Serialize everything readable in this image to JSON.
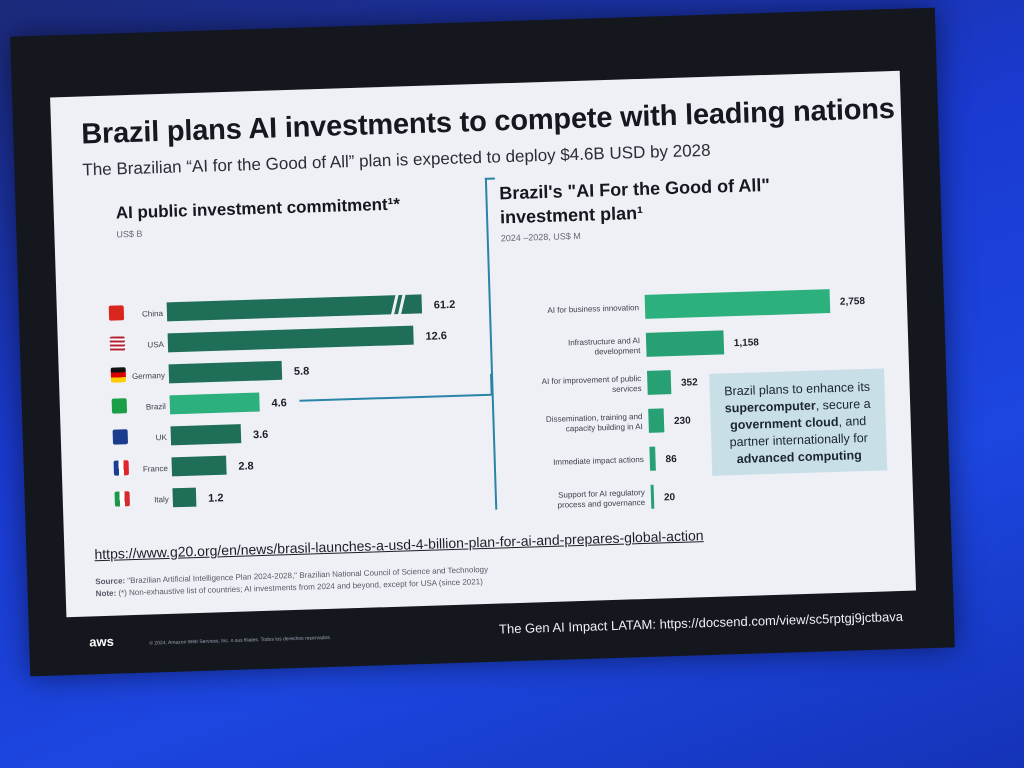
{
  "slide": {
    "title": "Brazil plans AI investments to compete with leading nations",
    "subtitle": "The Brazilian “AI for the Good of All” plan is expected to deploy $4.6B USD by 2028",
    "callout": {
      "line1": "Brazil plans to enhance its",
      "bold1": "supercomputer",
      "line2": ", secure a",
      "bold2": "government cloud",
      "line3": ", and partner internationally for",
      "bold3": "advanced computing"
    },
    "url": "https://www.g20.org/en/news/brasil-launches-a-usd-4-billion-plan-for-ai-and-prepares-global-action",
    "source_label": "Source:",
    "source_text": "\"Brazilian Artificial Intelligence Plan 2024-2028,\" Brazilian National Council of Science and Technology",
    "note_label": "Note:",
    "note_text": "(*) Non-exhaustive list of countries; AI investments from 2024 and beyond, except for USA (since 2021)"
  },
  "footer": {
    "logo": "aws",
    "copyright": "© 2024, Amazon Web Services, Inc. o sus filiales. Todos los derechos reservados.",
    "link_text": "The Gen AI Impact LATAM: https://docsend.com/view/sc5rptgj9jctbava"
  },
  "colors": {
    "bar_dark": "#1f6e57",
    "bar_highlight": "#2bb07e",
    "connector": "#2a84a8"
  },
  "chart_data": [
    {
      "type": "bar",
      "orientation": "horizontal",
      "title": "AI public investment commitment¹*",
      "unit": "US$ B",
      "categories": [
        "China",
        "USA",
        "Germany",
        "Brazil",
        "UK",
        "France",
        "Italy"
      ],
      "values": [
        61.2,
        12.6,
        5.8,
        4.6,
        3.6,
        2.8,
        1.2
      ],
      "value_labels": [
        "61.2",
        "12.6",
        "5.8",
        "4.6",
        "3.6",
        "2.8",
        "1.2"
      ],
      "highlight": "Brazil",
      "broken_axis_on": "China",
      "flags": [
        "flag-china-icon",
        "flag-usa-icon",
        "flag-germany-icon",
        "flag-brazil-icon",
        "flag-uk-icon",
        "flag-france-icon",
        "flag-italy-icon"
      ]
    },
    {
      "type": "bar",
      "orientation": "horizontal",
      "title": "Brazil's \"AI For the Good of All\" investment plan¹",
      "unit": "2024 –2028, US$ M",
      "categories": [
        "AI for business innovation",
        "Infrastructure and AI development",
        "AI for improvement of public services",
        "Dissemination, training and capacity building in AI",
        "Immediate impact actions",
        "Support for AI regulatory process and governance"
      ],
      "values": [
        2758,
        1158,
        352,
        230,
        86,
        20
      ],
      "value_labels": [
        "2,758",
        "1,158",
        "352",
        "230",
        "86",
        "20"
      ]
    }
  ]
}
